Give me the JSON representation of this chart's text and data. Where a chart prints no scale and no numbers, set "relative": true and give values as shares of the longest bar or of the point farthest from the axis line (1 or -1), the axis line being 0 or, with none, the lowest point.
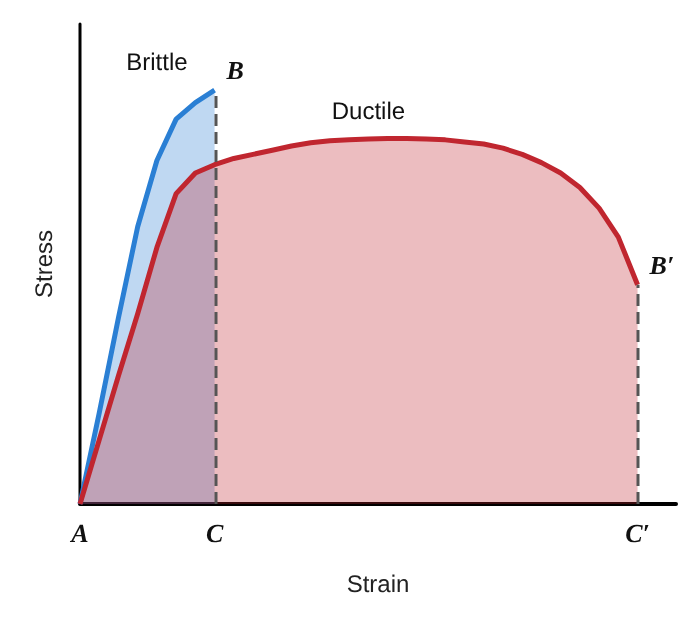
{
  "chart_data": {
    "type": "area",
    "relative": true,
    "xlabel": "Strain",
    "ylabel": "Stress",
    "categories": [
      "A",
      null,
      null,
      null,
      null,
      null,
      null,
      "C",
      null,
      null,
      null,
      null,
      null,
      null,
      null,
      null,
      null,
      null,
      null,
      null,
      null,
      null,
      null,
      null,
      null,
      null,
      null,
      null,
      null,
      "C′",
      null,
      null
    ],
    "grid": false,
    "marker": "none",
    "series": [
      {
        "name": "Brittle",
        "color": "#2a7fd4",
        "values": [
          0,
          0.22,
          0.45,
          0.67,
          0.83,
          0.93,
          0.97,
          1,
          null,
          null,
          null,
          null,
          null,
          null,
          null,
          null,
          null,
          null,
          null,
          null,
          null,
          null,
          null,
          null,
          null,
          null,
          null,
          null,
          null,
          null,
          null,
          null
        ]
      },
      {
        "name": "Ductile",
        "color": "#c0262f",
        "values": [
          0,
          0.155,
          0.31,
          0.46,
          0.62,
          0.75,
          0.8,
          0.82,
          0.835,
          0.845,
          0.855,
          0.865,
          0.873,
          0.878,
          0.88,
          0.882,
          0.883,
          0.883,
          0.882,
          0.88,
          0.875,
          0.87,
          0.86,
          0.845,
          0.825,
          0.8,
          0.765,
          0.715,
          0.645,
          0.53,
          null,
          null
        ]
      }
    ],
    "ref_lines": [
      {
        "axis": "x",
        "value": "C",
        "label": null,
        "color": "#555555",
        "line_style": "dashed"
      },
      {
        "axis": "x",
        "value": "C′",
        "label": null,
        "color": "#555555",
        "line_style": "dashed"
      }
    ],
    "annotations": [
      "B",
      "B′"
    ]
  }
}
